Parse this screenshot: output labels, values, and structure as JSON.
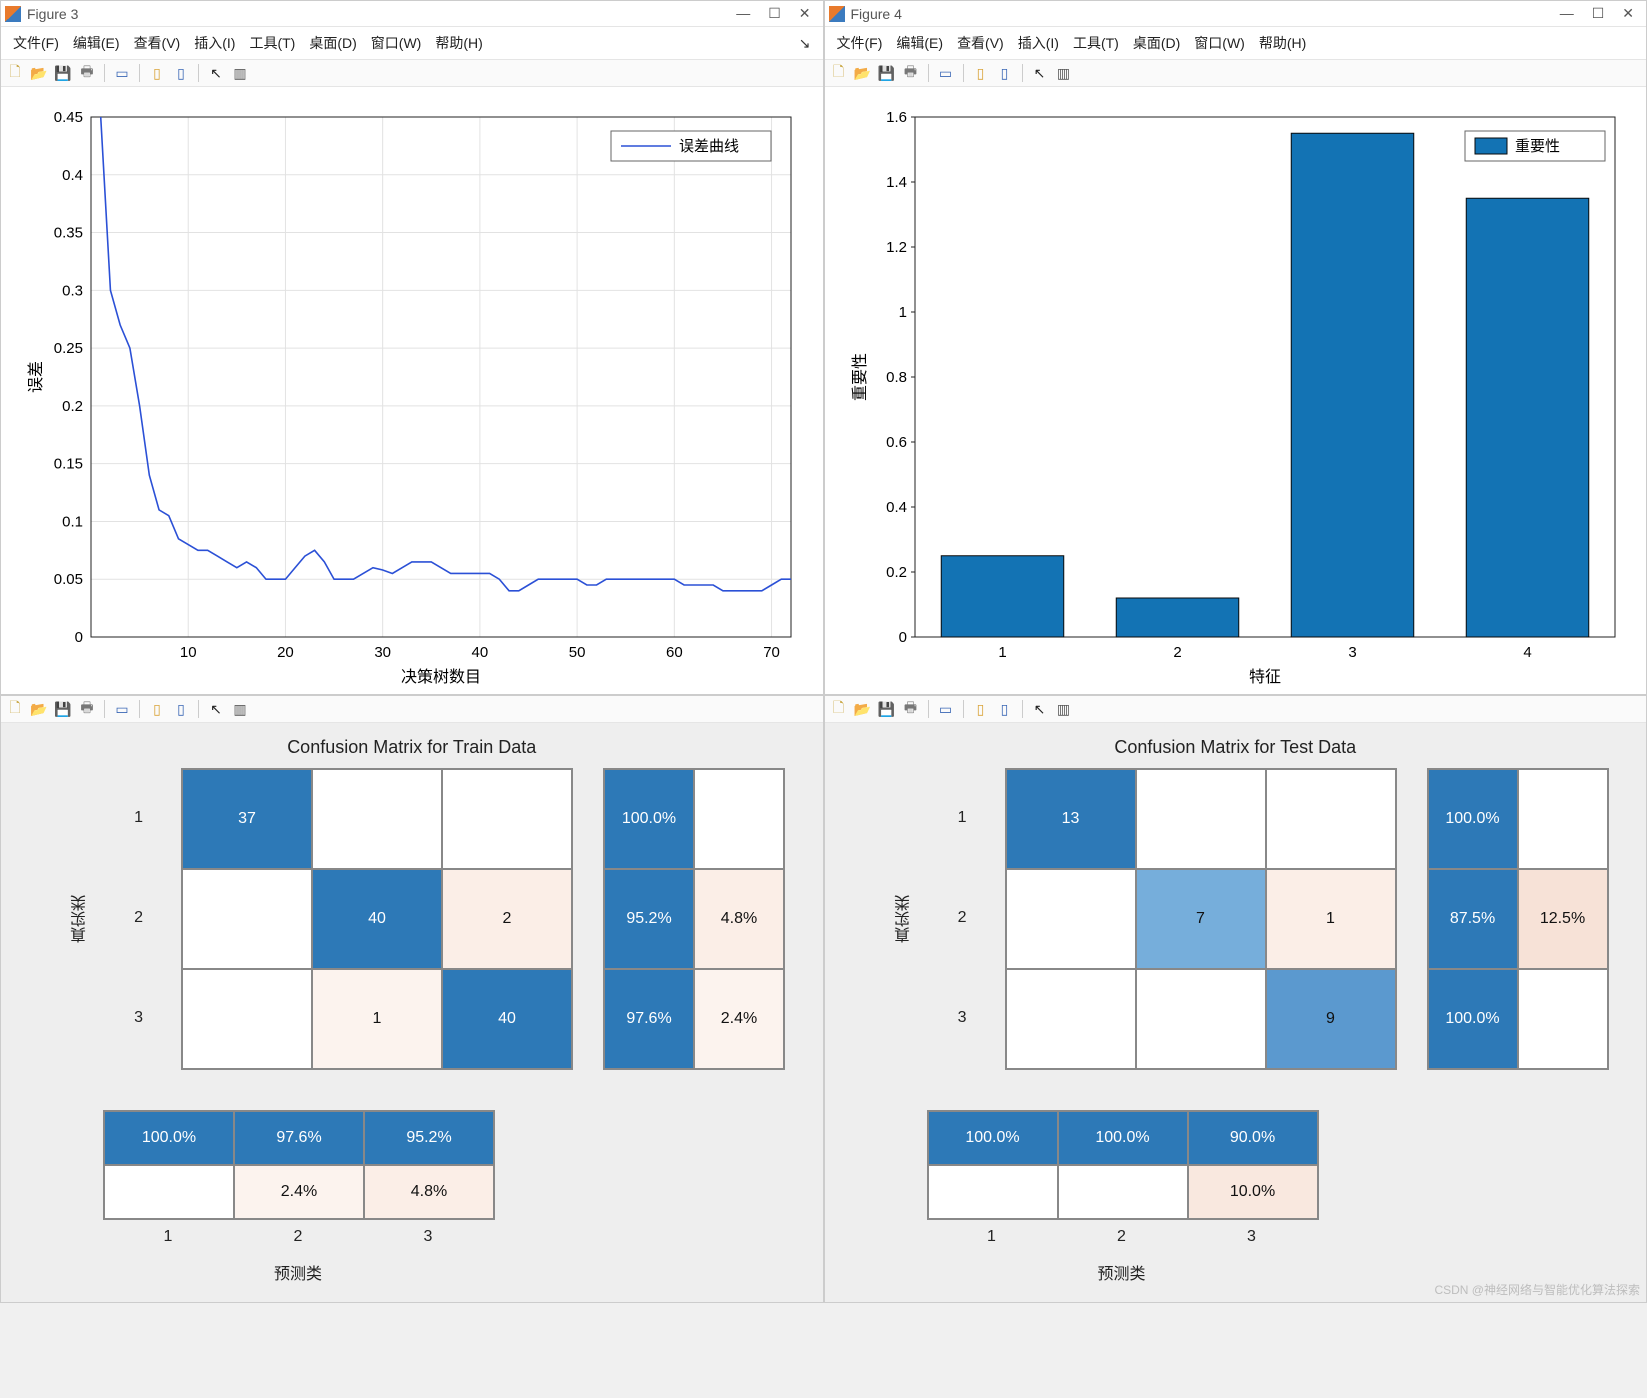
{
  "watermark": "CSDN @神经网络与智能优化算法探索",
  "menu_items": [
    "文件(F)",
    "编辑(E)",
    "查看(V)",
    "插入(I)",
    "工具(T)",
    "桌面(D)",
    "窗口(W)",
    "帮助(H)"
  ],
  "toolbar_icons": [
    {
      "name": "new-icon",
      "glyph": "🗋",
      "color": "#c8a642"
    },
    {
      "name": "open-icon",
      "glyph": "📂",
      "color": "#d9a43a"
    },
    {
      "name": "save-icon",
      "glyph": "💾",
      "color": "#3a67b5"
    },
    {
      "name": "print-icon",
      "glyph": "🖶",
      "color": "#777"
    },
    {
      "name": "sep"
    },
    {
      "name": "link-icon",
      "glyph": "▭",
      "color": "#3a67b5"
    },
    {
      "name": "sep"
    },
    {
      "name": "panel1-icon",
      "glyph": "▯",
      "color": "#d9a43a"
    },
    {
      "name": "panel2-icon",
      "glyph": "▯",
      "color": "#3a67b5"
    },
    {
      "name": "sep"
    },
    {
      "name": "pointer-icon",
      "glyph": "↖",
      "color": "#222"
    },
    {
      "name": "options-icon",
      "glyph": "▥",
      "color": "#555"
    }
  ],
  "fig3": {
    "title": "Figure 3",
    "chart": {
      "type": "line",
      "xlabel": "决策树数目",
      "ylabel": "误差",
      "legend": "误差曲线",
      "xlim": [
        0,
        72
      ],
      "ylim": [
        0,
        0.45
      ],
      "xticks": [
        10,
        20,
        30,
        40,
        50,
        60,
        70
      ],
      "yticks": [
        0,
        0.05,
        0.1,
        0.15,
        0.2,
        0.25,
        0.3,
        0.35,
        0.4,
        0.45
      ],
      "line_color": "#2b50d6",
      "grid_color": "#e2e2e2",
      "points": [
        [
          1,
          0.45
        ],
        [
          2,
          0.3
        ],
        [
          3,
          0.27
        ],
        [
          4,
          0.25
        ],
        [
          5,
          0.2
        ],
        [
          6,
          0.14
        ],
        [
          7,
          0.11
        ],
        [
          8,
          0.105
        ],
        [
          9,
          0.085
        ],
        [
          10,
          0.08
        ],
        [
          11,
          0.075
        ],
        [
          12,
          0.075
        ],
        [
          13,
          0.07
        ],
        [
          14,
          0.065
        ],
        [
          15,
          0.06
        ],
        [
          16,
          0.065
        ],
        [
          17,
          0.06
        ],
        [
          18,
          0.05
        ],
        [
          19,
          0.05
        ],
        [
          20,
          0.05
        ],
        [
          21,
          0.06
        ],
        [
          22,
          0.07
        ],
        [
          23,
          0.075
        ],
        [
          24,
          0.065
        ],
        [
          25,
          0.05
        ],
        [
          26,
          0.05
        ],
        [
          27,
          0.05
        ],
        [
          28,
          0.055
        ],
        [
          29,
          0.06
        ],
        [
          30,
          0.058
        ],
        [
          31,
          0.055
        ],
        [
          32,
          0.06
        ],
        [
          33,
          0.065
        ],
        [
          34,
          0.065
        ],
        [
          35,
          0.065
        ],
        [
          36,
          0.06
        ],
        [
          37,
          0.055
        ],
        [
          38,
          0.055
        ],
        [
          39,
          0.055
        ],
        [
          40,
          0.055
        ],
        [
          41,
          0.055
        ],
        [
          42,
          0.05
        ],
        [
          43,
          0.04
        ],
        [
          44,
          0.04
        ],
        [
          45,
          0.045
        ],
        [
          46,
          0.05
        ],
        [
          47,
          0.05
        ],
        [
          48,
          0.05
        ],
        [
          49,
          0.05
        ],
        [
          50,
          0.05
        ],
        [
          51,
          0.045
        ],
        [
          52,
          0.045
        ],
        [
          53,
          0.05
        ],
        [
          54,
          0.05
        ],
        [
          55,
          0.05
        ],
        [
          56,
          0.05
        ],
        [
          57,
          0.05
        ],
        [
          58,
          0.05
        ],
        [
          59,
          0.05
        ],
        [
          60,
          0.05
        ],
        [
          61,
          0.045
        ],
        [
          62,
          0.045
        ],
        [
          63,
          0.045
        ],
        [
          64,
          0.045
        ],
        [
          65,
          0.04
        ],
        [
          66,
          0.04
        ],
        [
          67,
          0.04
        ],
        [
          68,
          0.04
        ],
        [
          69,
          0.04
        ],
        [
          70,
          0.045
        ],
        [
          71,
          0.05
        ],
        [
          72,
          0.05
        ]
      ]
    }
  },
  "fig4": {
    "title": "Figure 4",
    "chart": {
      "type": "bar",
      "xlabel": "特征",
      "ylabel": "重要性",
      "legend": "重要性",
      "xlim": [
        0.5,
        4.5
      ],
      "ylim": [
        0,
        1.6
      ],
      "xticks": [
        1,
        2,
        3,
        4
      ],
      "yticks": [
        0,
        0.2,
        0.4,
        0.6,
        0.8,
        1,
        1.2,
        1.4,
        1.6
      ],
      "bar_color": "#1373b4",
      "bar_edge": "#0a0a0a",
      "values": [
        0.25,
        0.12,
        1.55,
        1.35
      ],
      "bar_width": 0.7
    }
  },
  "cm_train": {
    "title": "Confusion Matrix for Train Data",
    "ylabel": "真实类",
    "xlabel": "预测类",
    "row_ticks": [
      "1",
      "2",
      "3"
    ],
    "col_ticks": [
      "1",
      "2",
      "3"
    ],
    "cells": [
      [
        {
          "v": "37",
          "bg": "#2d79b7",
          "fg": "#fff"
        },
        {
          "v": "",
          "bg": "#fff"
        },
        {
          "v": "",
          "bg": "#fff"
        }
      ],
      [
        {
          "v": "",
          "bg": "#fff"
        },
        {
          "v": "40",
          "bg": "#2d79b7",
          "fg": "#fff"
        },
        {
          "v": "2",
          "bg": "#fbeee7"
        }
      ],
      [
        {
          "v": "",
          "bg": "#fff"
        },
        {
          "v": "1",
          "bg": "#fcf3ee"
        },
        {
          "v": "40",
          "bg": "#2d79b7",
          "fg": "#fff"
        }
      ]
    ],
    "row_pct": [
      [
        {
          "v": "100.0%",
          "bg": "#2d79b7",
          "fg": "#fff"
        },
        {
          "v": "",
          "bg": "#fff"
        }
      ],
      [
        {
          "v": "95.2%",
          "bg": "#2d79b7",
          "fg": "#fff"
        },
        {
          "v": "4.8%",
          "bg": "#fbeee7"
        }
      ],
      [
        {
          "v": "97.6%",
          "bg": "#2d79b7",
          "fg": "#fff"
        },
        {
          "v": "2.4%",
          "bg": "#fcf3ee"
        }
      ]
    ],
    "col_pct": [
      [
        {
          "v": "100.0%",
          "bg": "#2d79b7",
          "fg": "#fff"
        },
        {
          "v": "97.6%",
          "bg": "#2d79b7",
          "fg": "#fff"
        },
        {
          "v": "95.2%",
          "bg": "#2d79b7",
          "fg": "#fff"
        }
      ],
      [
        {
          "v": "",
          "bg": "#fff"
        },
        {
          "v": "2.4%",
          "bg": "#fcf3ee"
        },
        {
          "v": "4.8%",
          "bg": "#fbeee7"
        }
      ]
    ]
  },
  "cm_test": {
    "title": "Confusion Matrix for Test Data",
    "ylabel": "真实类",
    "xlabel": "预测类",
    "row_ticks": [
      "1",
      "2",
      "3"
    ],
    "col_ticks": [
      "1",
      "2",
      "3"
    ],
    "cells": [
      [
        {
          "v": "13",
          "bg": "#2d79b7",
          "fg": "#fff"
        },
        {
          "v": "",
          "bg": "#fff"
        },
        {
          "v": "",
          "bg": "#fff"
        }
      ],
      [
        {
          "v": "",
          "bg": "#fff"
        },
        {
          "v": "7",
          "bg": "#76aedb"
        },
        {
          "v": "1",
          "bg": "#fbeee7"
        }
      ],
      [
        {
          "v": "",
          "bg": "#fff"
        },
        {
          "v": "",
          "bg": "#fff"
        },
        {
          "v": "9",
          "bg": "#5b99cf",
          "fg": "#111"
        }
      ]
    ],
    "row_pct": [
      [
        {
          "v": "100.0%",
          "bg": "#2d79b7",
          "fg": "#fff"
        },
        {
          "v": "",
          "bg": "#fff"
        }
      ],
      [
        {
          "v": "87.5%",
          "bg": "#2d79b7",
          "fg": "#fff"
        },
        {
          "v": "12.5%",
          "bg": "#f7e2d7"
        }
      ],
      [
        {
          "v": "100.0%",
          "bg": "#2d79b7",
          "fg": "#fff"
        },
        {
          "v": "",
          "bg": "#fff"
        }
      ]
    ],
    "col_pct": [
      [
        {
          "v": "100.0%",
          "bg": "#2d79b7",
          "fg": "#fff"
        },
        {
          "v": "100.0%",
          "bg": "#2d79b7",
          "fg": "#fff"
        },
        {
          "v": "90.0%",
          "bg": "#2d79b7",
          "fg": "#fff"
        }
      ],
      [
        {
          "v": "",
          "bg": "#fff"
        },
        {
          "v": "",
          "bg": "#fff"
        },
        {
          "v": "10.0%",
          "bg": "#f9e8df"
        }
      ]
    ]
  }
}
